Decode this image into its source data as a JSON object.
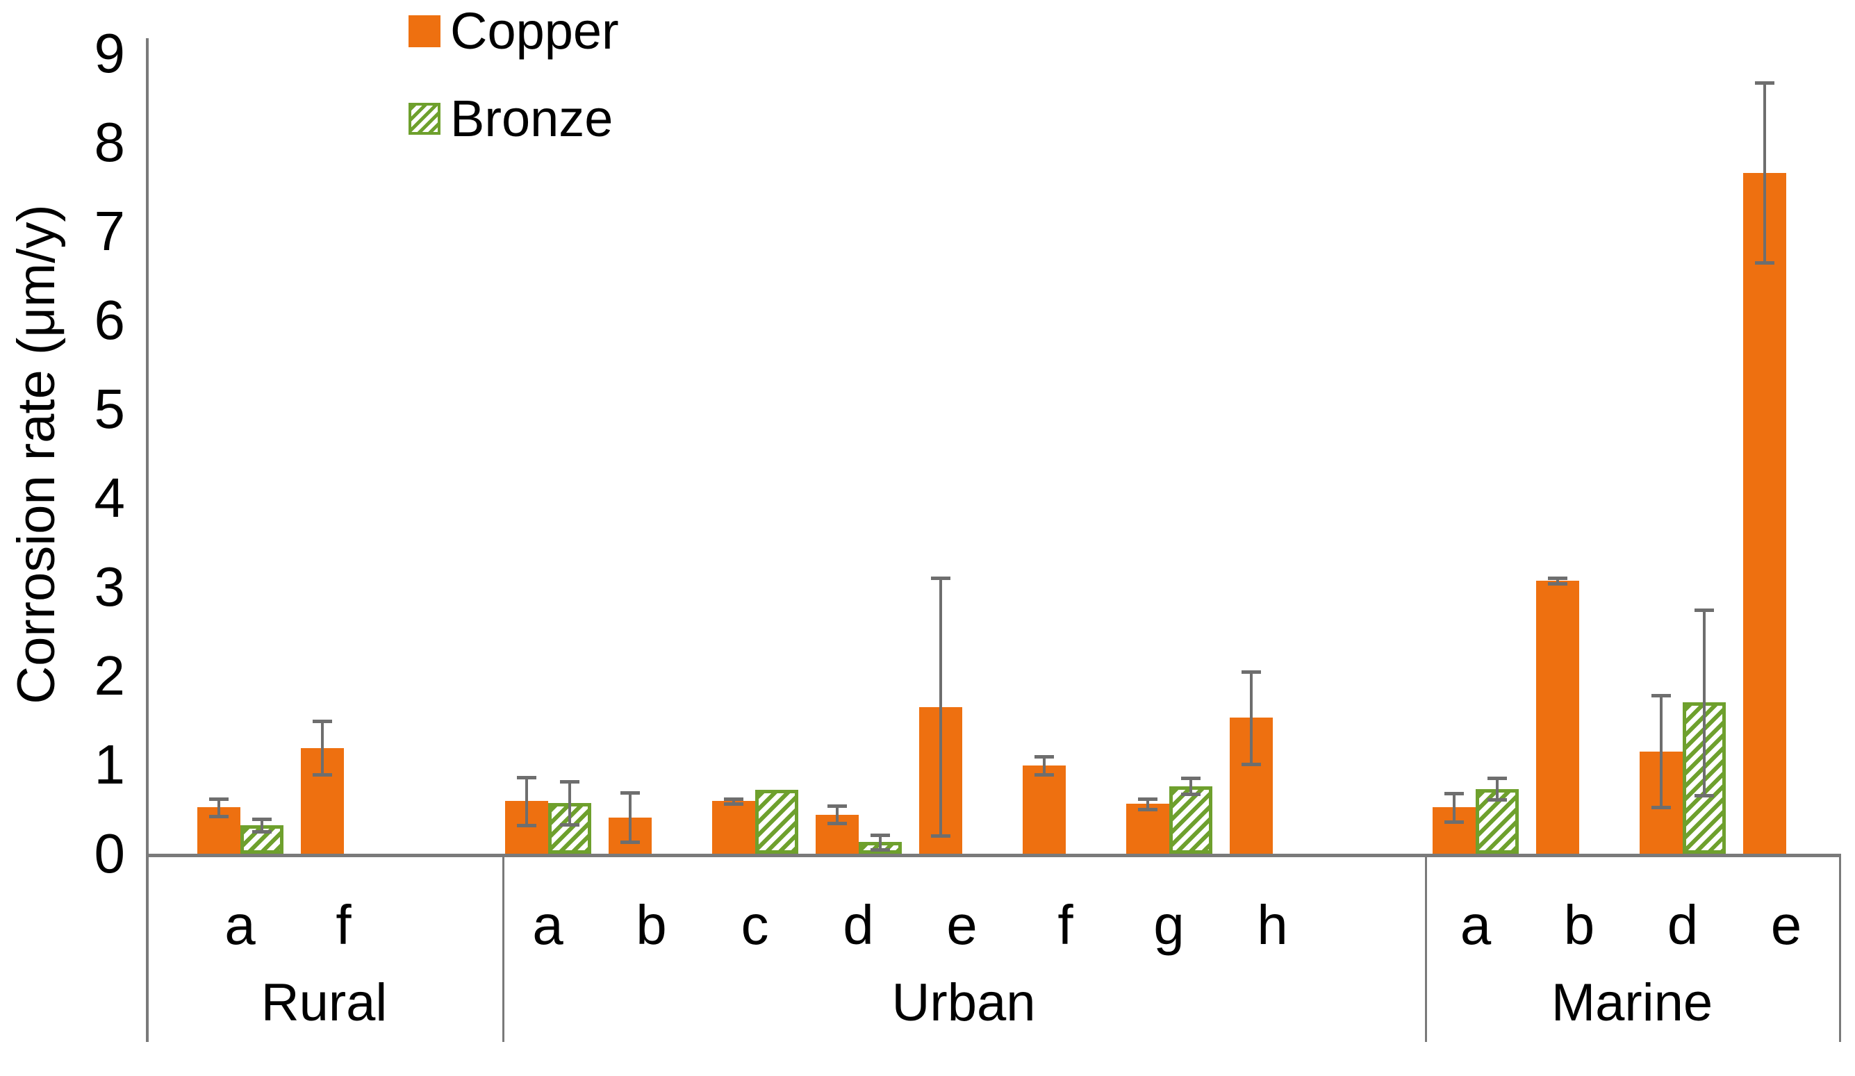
{
  "chart_data": {
    "type": "bar",
    "title": "",
    "ylabel": "Corrosion rate (μm/y)",
    "ylim": [
      0,
      9
    ],
    "yticks": [
      0,
      1,
      2,
      3,
      4,
      5,
      6,
      7,
      8,
      9
    ],
    "grid": false,
    "legend_position": "top-left-inside",
    "legend": [
      "Copper",
      "Bronze"
    ],
    "groups": [
      "Rural",
      "Urban",
      "Marine"
    ],
    "categories": [
      {
        "group": "Rural",
        "site": "a"
      },
      {
        "group": "Rural",
        "site": "f"
      },
      {
        "group": "Urban",
        "site": "a"
      },
      {
        "group": "Urban",
        "site": "b"
      },
      {
        "group": "Urban",
        "site": "c"
      },
      {
        "group": "Urban",
        "site": "d"
      },
      {
        "group": "Urban",
        "site": "e"
      },
      {
        "group": "Urban",
        "site": "f"
      },
      {
        "group": "Urban",
        "site": "g"
      },
      {
        "group": "Urban",
        "site": "h"
      },
      {
        "group": "Marine",
        "site": "a"
      },
      {
        "group": "Marine",
        "site": "b"
      },
      {
        "group": "Marine",
        "site": "d"
      },
      {
        "group": "Marine",
        "site": "e"
      }
    ],
    "series": [
      {
        "name": "Copper",
        "style": "solid",
        "color": "#EE7010",
        "values": [
          0.52,
          1.19,
          0.59,
          0.41,
          0.59,
          0.44,
          1.65,
          0.99,
          0.56,
          1.53,
          0.52,
          3.07,
          1.15,
          7.66
        ],
        "errors": [
          0.1,
          0.3,
          0.27,
          0.28,
          0.03,
          0.1,
          1.45,
          0.1,
          0.06,
          0.52,
          0.16,
          0.03,
          0.63,
          1.01
        ]
      },
      {
        "name": "Bronze",
        "style": "hatched",
        "color": "#6EA02D",
        "values": [
          0.32,
          null,
          0.57,
          null,
          0.72,
          0.13,
          null,
          null,
          0.76,
          null,
          0.73,
          null,
          1.7,
          null
        ],
        "errors": [
          0.07,
          null,
          0.24,
          null,
          0,
          0.08,
          null,
          null,
          0.09,
          null,
          0.12,
          null,
          1.04,
          null
        ]
      }
    ],
    "error_bar_color": "#6e6e6e",
    "axis_color": "#7a7a7a"
  }
}
